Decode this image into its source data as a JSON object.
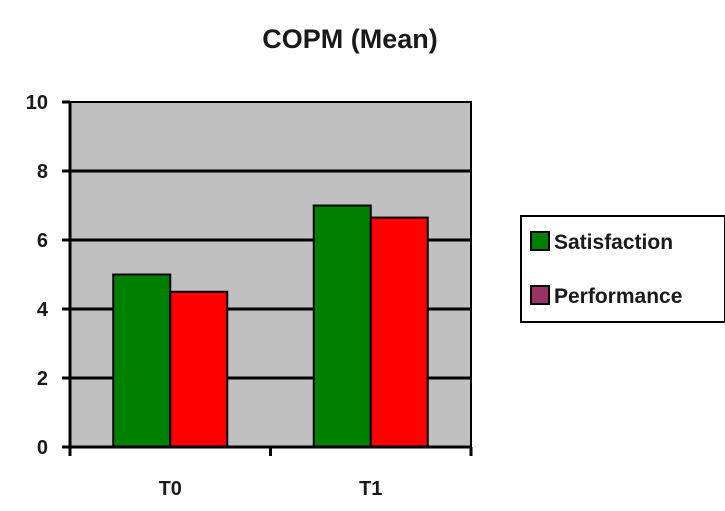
{
  "chart_data": {
    "type": "bar",
    "title": "COPM (Mean)",
    "categories": [
      "T0",
      "T1"
    ],
    "series": [
      {
        "name": "Satisfaction",
        "values": [
          5.0,
          7.0
        ],
        "color": "#008000",
        "legend_color": "#008000"
      },
      {
        "name": "Performance",
        "values": [
          4.5,
          6.65
        ],
        "color": "#ff0000",
        "legend_color": "#993366"
      }
    ],
    "ylim": [
      0,
      10
    ],
    "yticks": [
      "0",
      "2",
      "4",
      "6",
      "8",
      "10"
    ],
    "plot_background": "#c0c0c0",
    "grid": true,
    "legend_position": "right"
  }
}
